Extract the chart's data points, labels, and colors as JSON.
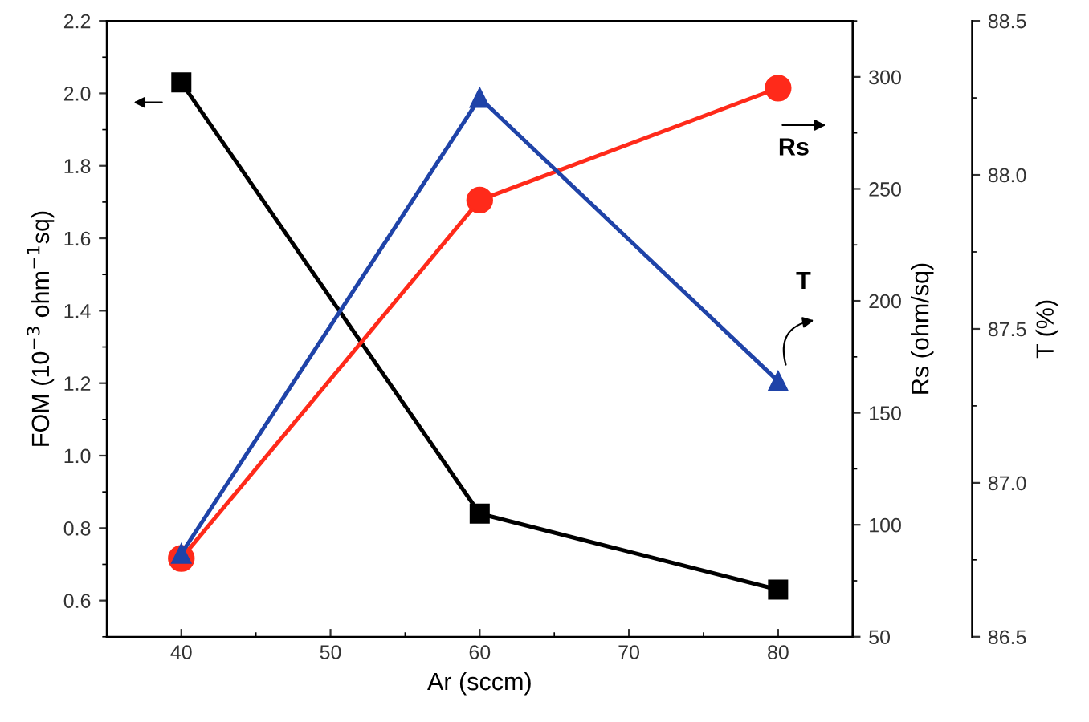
{
  "chart_data": {
    "type": "line",
    "xlabel": "Ar (sccm)",
    "ylabel": "FOM (10$^{−3}$ ohm$^{−1}$sq)",
    "y2label": "Rs (ohm/sq)",
    "y3label": "T (%)",
    "x": [
      40,
      60,
      80
    ],
    "xlim": [
      35,
      85
    ],
    "xticks": [
      40,
      50,
      60,
      70,
      80
    ],
    "ylim": [
      0.5,
      2.2
    ],
    "yticks": [
      0.6,
      0.8,
      {
        "value": 1,
        "label": "1.0"
      },
      1.2,
      1.4,
      1.6,
      1.8,
      {
        "value": 2,
        "label": "2.0"
      },
      2.2
    ],
    "y2lim": [
      50,
      325
    ],
    "y2ticks": [
      50,
      100,
      150,
      200,
      250,
      300
    ],
    "y3lim": [
      86.5,
      88.5
    ],
    "y3ticks": [
      86.5,
      {
        "value": 87,
        "label": "87.0"
      },
      87.5,
      {
        "value": 88,
        "label": "88.0"
      },
      88.5
    ],
    "grid": false,
    "legend": false,
    "line_style": "solid",
    "series": [
      {
        "color": "#000000",
        "marker": "square",
        "values": [
          2.03,
          0.84,
          0.63
        ]
      },
      {
        "name": "Rs",
        "color": "#ff2a1a",
        "marker": "circle",
        "axis": "y2",
        "values": [
          85,
          245,
          295
        ]
      },
      {
        "name": "T",
        "color": "#1f43a8",
        "marker": "triangle",
        "axis": "y3",
        "values": [
          86.77,
          88.25,
          87.33
        ]
      }
    ]
  }
}
